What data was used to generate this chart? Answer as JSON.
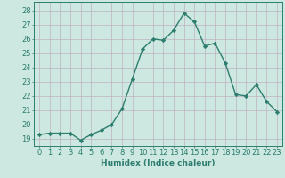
{
  "x": [
    0,
    1,
    2,
    3,
    4,
    5,
    6,
    7,
    8,
    9,
    10,
    11,
    12,
    13,
    14,
    15,
    16,
    17,
    18,
    19,
    20,
    21,
    22,
    23
  ],
  "y": [
    19.3,
    19.4,
    19.4,
    19.4,
    18.9,
    19.3,
    19.6,
    20.0,
    21.1,
    23.2,
    25.3,
    26.0,
    25.9,
    26.6,
    27.8,
    27.2,
    25.5,
    25.7,
    24.3,
    22.1,
    22.0,
    22.8,
    21.6,
    20.9
  ],
  "line_color": "#2d7d6e",
  "marker": "D",
  "marker_size": 2.2,
  "bg_color": "#cce8e0",
  "grid_color_major": "#c0b0c0",
  "grid_color_minor": "#c0b0c0",
  "xlabel": "Humidex (Indice chaleur)",
  "ylabel_ticks": [
    19,
    20,
    21,
    22,
    23,
    24,
    25,
    26,
    27,
    28
  ],
  "ylim": [
    18.5,
    28.6
  ],
  "xlim": [
    -0.5,
    23.5
  ],
  "xlabel_fontsize": 6.5,
  "tick_fontsize": 6.0,
  "line_width": 1.0
}
